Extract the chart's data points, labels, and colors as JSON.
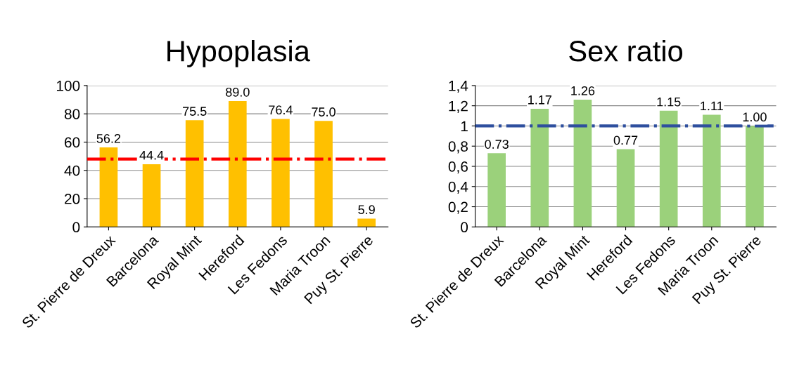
{
  "chart_data": [
    {
      "type": "bar",
      "title": "Hypoplasia",
      "categories": [
        "St. Pierre de Dreux",
        "Barcelona",
        "Royal Mint",
        "Hereford",
        "Les Fedons",
        "Maria Troon",
        "Puy St. Pierre"
      ],
      "values": [
        56.2,
        44.4,
        75.5,
        89.0,
        76.4,
        75.0,
        5.9
      ],
      "value_labels": [
        "56.2",
        "44.4",
        "75.5",
        "89.0",
        "76.4",
        "75.0",
        "5.9"
      ],
      "color": "#ffc000",
      "ylim": [
        0,
        100
      ],
      "yticks": [
        0,
        20,
        40,
        60,
        80,
        100
      ],
      "grid": "y",
      "ref_lines": [
        {
          "axis": "y",
          "value": 48,
          "color": "#ff0000",
          "line_style": "dashdot"
        }
      ]
    },
    {
      "type": "bar",
      "title": "Sex ratio",
      "categories": [
        "St. Pierre de Dreux",
        "Barcelona",
        "Royal Mint",
        "Hereford",
        "Les Fedons",
        "Maria Troon",
        "Puy St. Pierre"
      ],
      "values": [
        0.73,
        1.17,
        1.26,
        0.77,
        1.15,
        1.11,
        1.0
      ],
      "value_labels": [
        "0.73",
        "1.17",
        "1.26",
        "0.77",
        "1.15",
        "1.11",
        "1.00"
      ],
      "color": "#9bd17b",
      "ylim": [
        0,
        1.4
      ],
      "yticks": [
        0,
        {
          "value": 0.2,
          "label": "0,2"
        },
        {
          "value": 0.4,
          "label": "0,4"
        },
        {
          "value": 0.6,
          "label": "0,6"
        },
        {
          "value": 0.8,
          "label": "0,8"
        },
        1,
        {
          "value": 1.2,
          "label": "1,2"
        },
        {
          "value": 1.4,
          "label": "1,4"
        }
      ],
      "grid": "y",
      "ref_lines": [
        {
          "axis": "y",
          "value": 1.0,
          "color": "#2e4f9e",
          "line_style": "dashdot"
        }
      ]
    }
  ]
}
